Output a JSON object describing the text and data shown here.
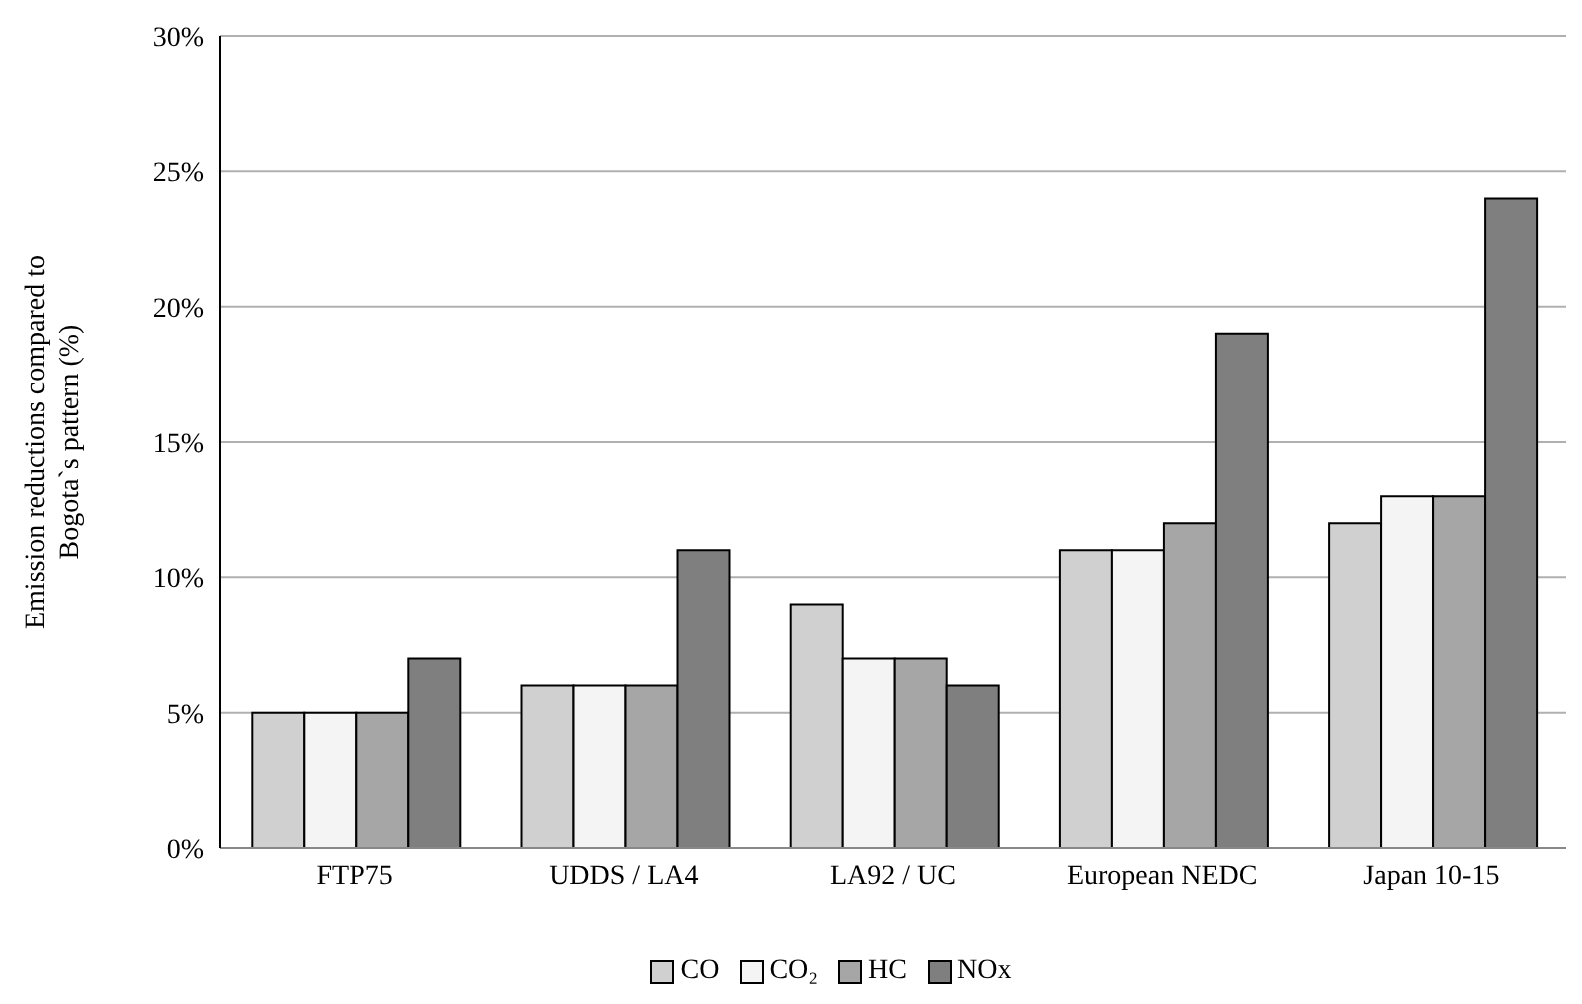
{
  "chart_data": {
    "type": "bar",
    "ylabel": "Emission reductions compared to Bogota`s pattern (%)",
    "categories": [
      "FTP75",
      "UDDS / LA4",
      "LA92 / UC",
      "European NEDC",
      "Japan 10-15"
    ],
    "series": [
      {
        "name": "CO",
        "color": "#d0d0d0",
        "values": [
          5,
          6,
          9,
          11,
          12
        ]
      },
      {
        "name": "CO₂",
        "color": "#f4f4f4",
        "values": [
          5,
          6,
          7,
          11,
          13
        ]
      },
      {
        "name": "HC",
        "color": "#a6a6a6",
        "values": [
          5,
          6,
          7,
          12,
          13
        ]
      },
      {
        "name": "NOx",
        "color": "#7f7f7f",
        "values": [
          7,
          11,
          6,
          19,
          24
        ]
      }
    ],
    "ylim": [
      0,
      30
    ],
    "yticks": [
      {
        "value": 0,
        "label": "0%"
      },
      {
        "value": 5,
        "label": "5%"
      },
      {
        "value": 10,
        "label": "10%"
      },
      {
        "value": 15,
        "label": "15%"
      },
      {
        "value": 20,
        "label": "20%"
      },
      {
        "value": 25,
        "label": "25%"
      },
      {
        "value": 30,
        "label": "30%"
      }
    ],
    "grid": "y",
    "legend": "bottom"
  }
}
